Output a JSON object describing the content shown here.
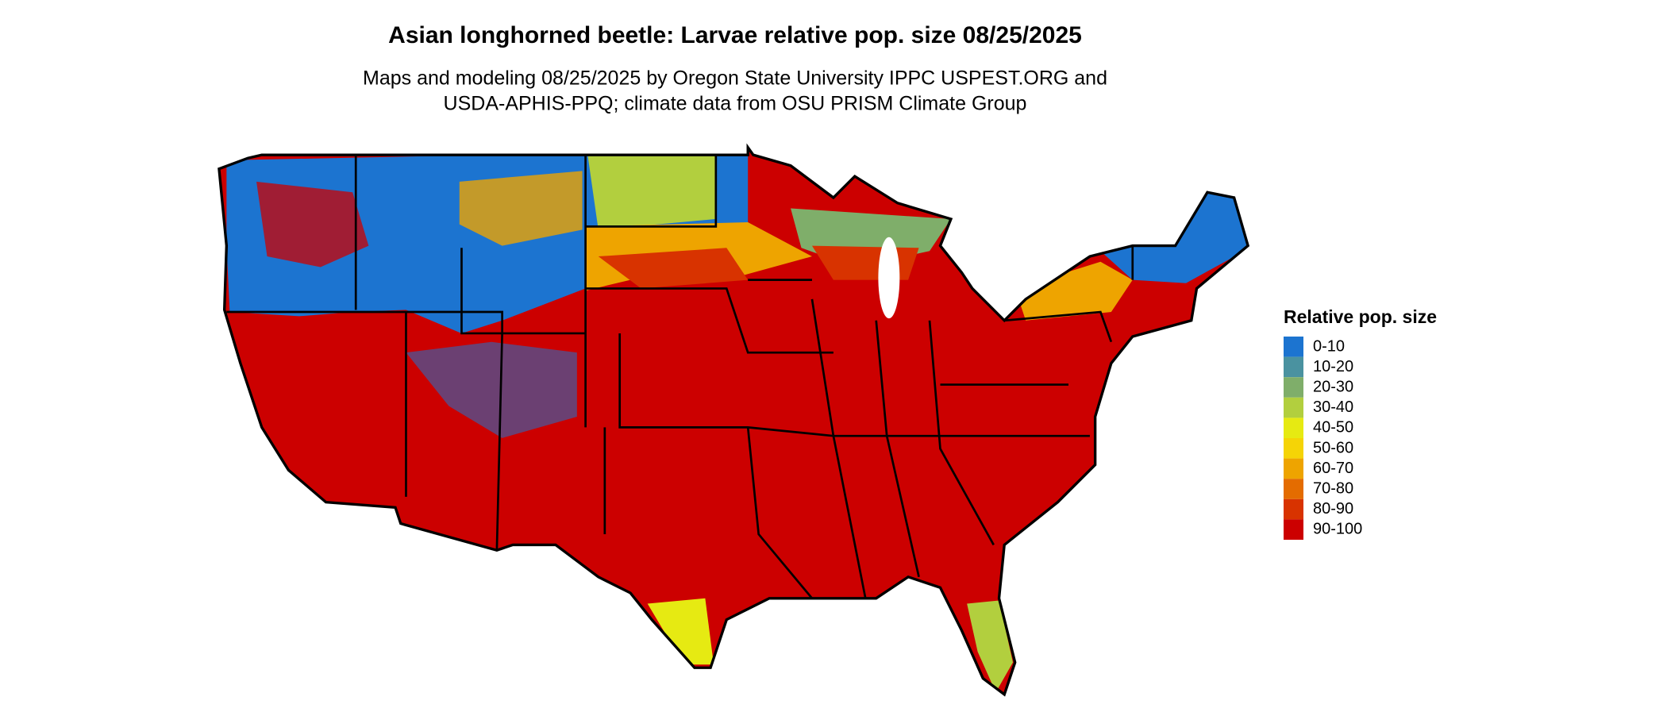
{
  "title": "Asian longhorned beetle: Larvae relative pop. size 08/25/2025",
  "subtitle": [
    "Maps and modeling 08/25/2025 by Oregon State University IPPC USPEST.ORG and",
    "USDA-APHIS-PPQ; climate data from OSU PRISM Climate Group"
  ],
  "legend": {
    "title": "Relative pop. size",
    "items": [
      {
        "label": "0-10",
        "color": "#1c74d0"
      },
      {
        "label": "10-20",
        "color": "#4a92a0"
      },
      {
        "label": "20-30",
        "color": "#7fae6a"
      },
      {
        "label": "30-40",
        "color": "#b2cf3e"
      },
      {
        "label": "40-50",
        "color": "#e6ea12"
      },
      {
        "label": "50-60",
        "color": "#f5d406"
      },
      {
        "label": "60-70",
        "color": "#eea400"
      },
      {
        "label": "70-80",
        "color": "#e46c00"
      },
      {
        "label": "80-90",
        "color": "#d83300"
      },
      {
        "label": "90-100",
        "color": "#cc0000"
      }
    ]
  }
}
